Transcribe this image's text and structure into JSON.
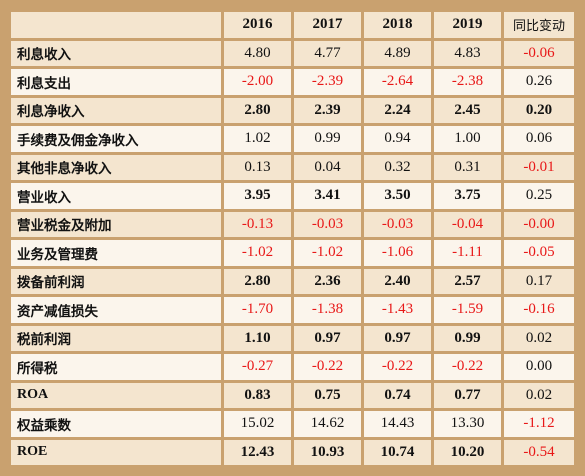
{
  "header": {
    "years": [
      "2016",
      "2017",
      "2018",
      "2019"
    ],
    "yoy_label": "同比变动"
  },
  "rows": [
    {
      "label": "利息收入",
      "values": [
        "4.80",
        "4.77",
        "4.89",
        "4.83"
      ],
      "yoy": "-0.06",
      "bold": false
    },
    {
      "label": "利息支出",
      "values": [
        "-2.00",
        "-2.39",
        "-2.64",
        "-2.38"
      ],
      "yoy": "0.26",
      "bold": false
    },
    {
      "label": "利息净收入",
      "values": [
        "2.80",
        "2.39",
        "2.24",
        "2.45"
      ],
      "yoy": "0.20",
      "bold": true
    },
    {
      "label": "手续费及佣金净收入",
      "values": [
        "1.02",
        "0.99",
        "0.94",
        "1.00"
      ],
      "yoy": "0.06",
      "bold": false
    },
    {
      "label": "其他非息净收入",
      "values": [
        "0.13",
        "0.04",
        "0.32",
        "0.31"
      ],
      "yoy": "-0.01",
      "bold": false
    },
    {
      "label": "营业收入",
      "values": [
        "3.95",
        "3.41",
        "3.50",
        "3.75"
      ],
      "yoy": "0.25",
      "bold": true
    },
    {
      "label": "营业税金及附加",
      "values": [
        "-0.13",
        "-0.03",
        "-0.03",
        "-0.04"
      ],
      "yoy": "-0.00",
      "bold": false
    },
    {
      "label": "业务及管理费",
      "values": [
        "-1.02",
        "-1.02",
        "-1.06",
        "-1.11"
      ],
      "yoy": "-0.05",
      "bold": false
    },
    {
      "label": "拨备前利润",
      "values": [
        "2.80",
        "2.36",
        "2.40",
        "2.57"
      ],
      "yoy": "0.17",
      "bold": true
    },
    {
      "label": "资产减值损失",
      "values": [
        "-1.70",
        "-1.38",
        "-1.43",
        "-1.59"
      ],
      "yoy": "-0.16",
      "bold": false
    },
    {
      "label": "税前利润",
      "values": [
        "1.10",
        "0.97",
        "0.97",
        "0.99"
      ],
      "yoy": "0.02",
      "bold": true
    },
    {
      "label": "所得税",
      "values": [
        "-0.27",
        "-0.22",
        "-0.22",
        "-0.22"
      ],
      "yoy": "0.00",
      "bold": false
    },
    {
      "label": "ROA",
      "values": [
        "0.83",
        "0.75",
        "0.74",
        "0.77"
      ],
      "yoy": "0.02",
      "bold": true
    },
    {
      "label": "权益乘数",
      "values": [
        "15.02",
        "14.62",
        "14.43",
        "13.30"
      ],
      "yoy": "-1.12",
      "bold": false
    },
    {
      "label": "ROE",
      "values": [
        "12.43",
        "10.93",
        "10.74",
        "10.20"
      ],
      "yoy": "-0.54",
      "bold": true
    }
  ]
}
